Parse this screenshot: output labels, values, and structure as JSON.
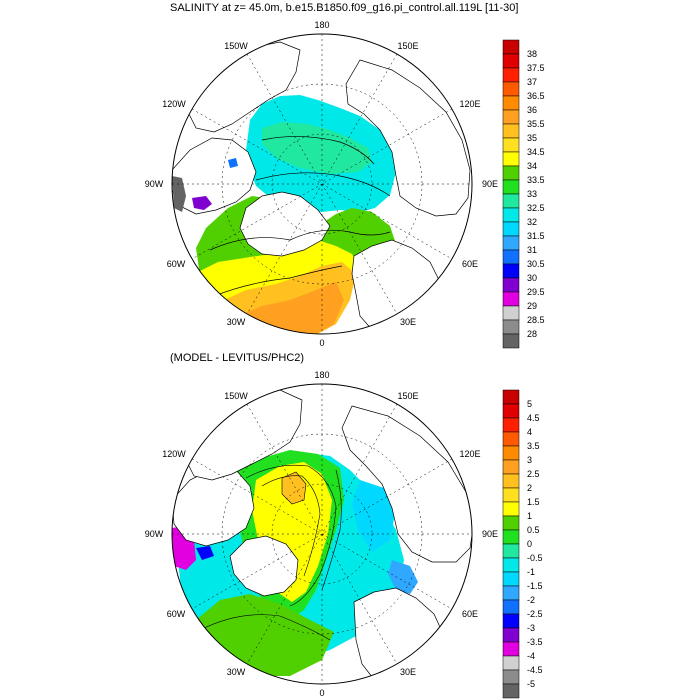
{
  "panels": [
    {
      "title": "SALINITY at z=  45.0m, b.e15.B1850.f09_g16.pi_control.all.119L [11-30]",
      "lon_labels": [
        "180",
        "150E",
        "120E",
        "90E",
        "60E",
        "30E",
        "0",
        "30W",
        "60W",
        "90W",
        "120W",
        "150W"
      ],
      "colorbar": {
        "labels": [
          "38",
          "37.5",
          "37",
          "36.5",
          "36",
          "35.5",
          "35",
          "34.5",
          "34",
          "33.5",
          "33",
          "32.5",
          "32",
          "31.5",
          "31",
          "30.5",
          "30",
          "29.5",
          "29",
          "28.5",
          "28"
        ],
        "colors": [
          "#c80000",
          "#e00000",
          "#ff2000",
          "#ff5a00",
          "#ff8c00",
          "#ffa020",
          "#ffc020",
          "#ffe020",
          "#ffff00",
          "#50d000",
          "#20e020",
          "#20e8a0",
          "#00e8e8",
          "#00d8ff",
          "#30a8ff",
          "#1070ff",
          "#0000ff",
          "#8000d0",
          "#e000e0",
          "#d0d0d0",
          "#8c8c8c",
          "#646464"
        ]
      }
    },
    {
      "title": "(MODEL - LEVITUS/PHC2)",
      "lon_labels": [
        "180",
        "150E",
        "120E",
        "90E",
        "60E",
        "30E",
        "0",
        "30W",
        "60W",
        "90W",
        "120W",
        "150W"
      ],
      "colorbar": {
        "labels": [
          "5",
          "4.5",
          "4",
          "3.5",
          "3",
          "2.5",
          "2",
          "1.5",
          "1",
          "0.5",
          "0",
          "-0.5",
          "-1",
          "-1.5",
          "-2",
          "-2.5",
          "-3",
          "-3.5",
          "-4",
          "-4.5",
          "-5"
        ],
        "colors": [
          "#c80000",
          "#e00000",
          "#ff2000",
          "#ff5a00",
          "#ff8c00",
          "#ffa020",
          "#ffc020",
          "#ffe020",
          "#ffff00",
          "#50d000",
          "#20e020",
          "#20e8a0",
          "#00e8e8",
          "#00d8ff",
          "#30a8ff",
          "#1070ff",
          "#0000ff",
          "#8000d0",
          "#e000e0",
          "#d0d0d0",
          "#8c8c8c",
          "#646464"
        ]
      }
    }
  ]
}
